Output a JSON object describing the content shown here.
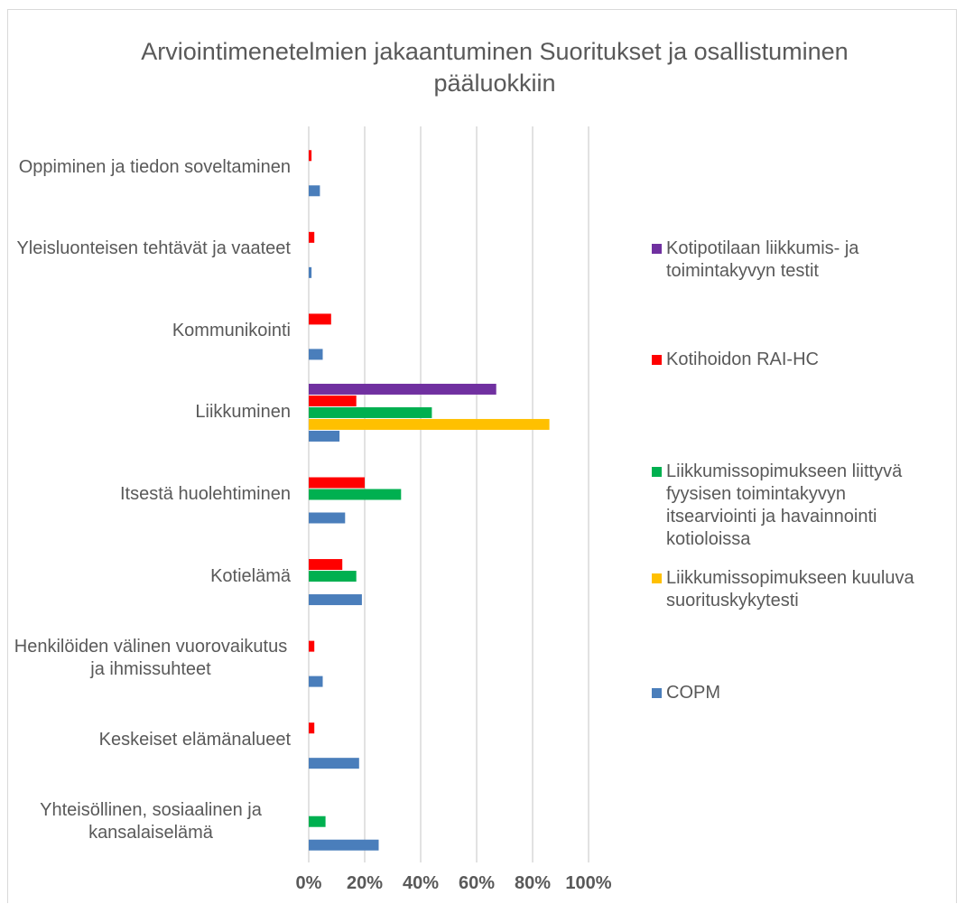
{
  "chart_data": {
    "type": "bar",
    "orientation": "horizontal",
    "title": "Arviointimenetelmien jakaantuminen Suoritukset ja osallistuminen pääluokkiin",
    "categories": [
      "Oppiminen ja tiedon soveltaminen",
      "Yleisluonteisen tehtävät ja vaateet",
      "Kommunikointi",
      "Liikkuminen",
      "Itsestä huolehtiminen",
      "Kotielämä",
      "Henkilöiden välinen vuorovaikutus ja ihmissuhteet",
      "Keskeiset elämänalueet",
      "Yhteisöllinen, sosiaalinen ja kansalaiselämä"
    ],
    "series": [
      {
        "name": "Kotipotilaan liikkumis- ja toimintakyvyn testit",
        "color": "#7030a0",
        "values": [
          null,
          null,
          null,
          67,
          null,
          null,
          null,
          null,
          null
        ]
      },
      {
        "name": "Kotihoidon RAI-HC",
        "color": "#ff0000",
        "values": [
          1,
          2,
          8,
          17,
          20,
          12,
          2,
          2,
          null
        ]
      },
      {
        "name": "Liikkumissopimukseen liittyvä fyysisen toimintakyvyn itsearviointi ja havainnointi kotioloissa",
        "color": "#00b050",
        "values": [
          null,
          null,
          null,
          44,
          33,
          17,
          null,
          null,
          6
        ]
      },
      {
        "name": "Liikkumissopimukseen kuuluva suorituskykytesti",
        "color": "#ffc000",
        "values": [
          null,
          null,
          null,
          86,
          null,
          null,
          null,
          null,
          null
        ]
      },
      {
        "name": "COPM",
        "color": "#4a7ebb",
        "values": [
          4,
          1,
          5,
          11,
          13,
          19,
          5,
          18,
          25
        ]
      }
    ],
    "xlim": [
      0,
      100
    ],
    "xticks": [
      {
        "value": 0,
        "label": "0%"
      },
      {
        "value": 20,
        "label": "20%"
      },
      {
        "value": 40,
        "label": "40%"
      },
      {
        "value": 60,
        "label": "60%"
      },
      {
        "value": 80,
        "label": "80%"
      },
      {
        "value": 100,
        "label": "100%"
      }
    ],
    "grid": true,
    "legend": "right"
  }
}
